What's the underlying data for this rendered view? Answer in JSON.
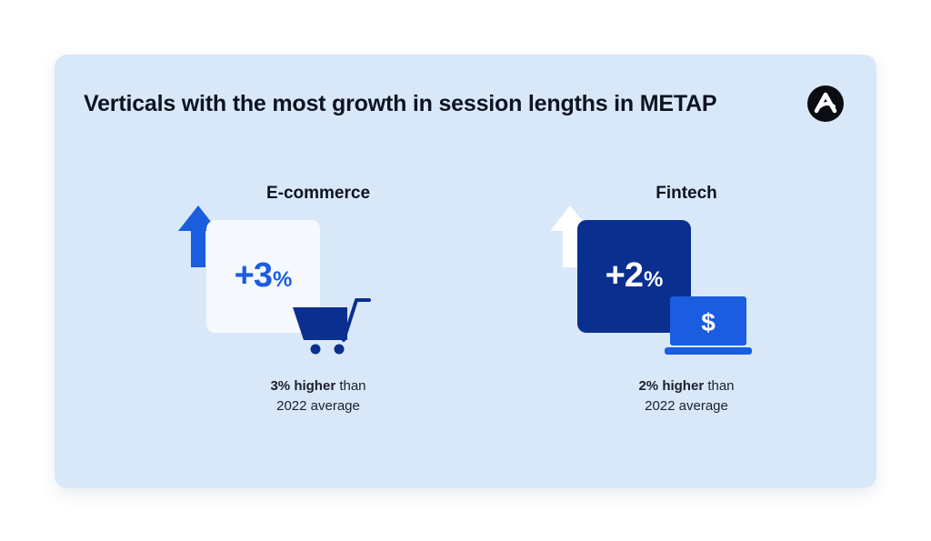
{
  "title": "Verticals with the most growth in session lengths in METAP",
  "logo": {
    "icon": "brand-logo-icon"
  },
  "colors": {
    "card_bg": "#d9e8f8",
    "accent_blue": "#1b5de0",
    "dark_navy": "#0a2f8f",
    "light_box": "#f5f9fe"
  },
  "verticals": [
    {
      "name": "E-commerce",
      "stat_number": "+3",
      "stat_unit": "%",
      "caption_bold": "3% higher",
      "caption_rest": " than",
      "caption_line2": "2022 average",
      "icon": "shopping-cart-icon",
      "arrow_icon": "up-arrow-icon"
    },
    {
      "name": "Fintech",
      "stat_number": "+2",
      "stat_unit": "%",
      "caption_bold": "2% higher",
      "caption_rest": " than",
      "caption_line2": "2022 average",
      "icon": "laptop-dollar-icon",
      "icon_symbol": "$",
      "arrow_icon": "up-arrow-icon"
    }
  ]
}
